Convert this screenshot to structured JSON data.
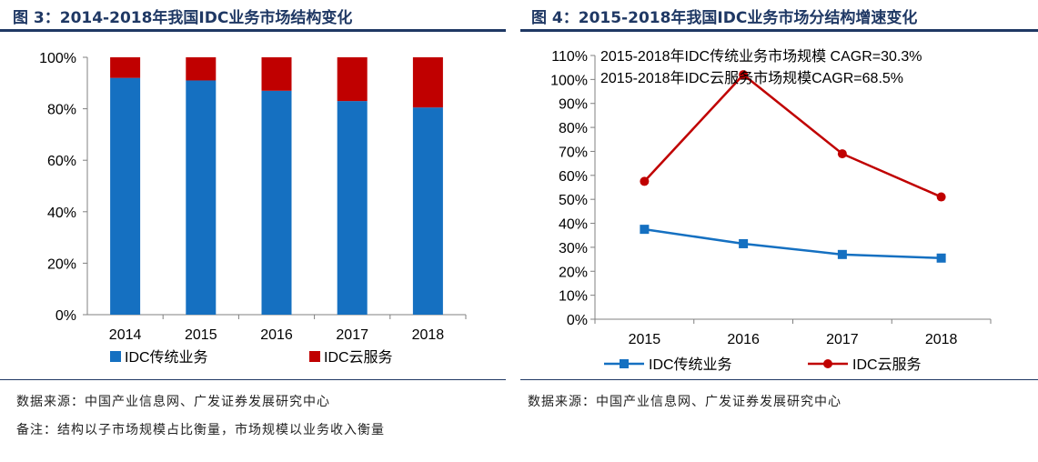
{
  "figures": [
    {
      "title": "图 3：2014-2018年我国IDC业务市场结构变化",
      "source": "数据来源：中国产业信息网、广发证券发展研究中心",
      "note": "备注：结构以子市场规模占比衡量，市场规模以业务收入衡量"
    },
    {
      "title": "图 4：2015-2018年我国IDC业务市场分结构增速变化",
      "source": "数据来源：中国产业信息网、广发证券发展研究中心"
    }
  ],
  "chart_data": [
    {
      "type": "bar",
      "stacked": true,
      "categories": [
        "2014",
        "2015",
        "2016",
        "2017",
        "2018"
      ],
      "series": [
        {
          "name": "IDC传统业务",
          "color": "#1570c1",
          "values": [
            92,
            91,
            87,
            83,
            80.5
          ]
        },
        {
          "name": "IDC云服务",
          "color": "#c00000",
          "values": [
            8,
            9,
            13,
            17,
            19.5
          ]
        }
      ],
      "ylim": [
        0,
        100
      ],
      "yticks": [
        "0%",
        "20%",
        "40%",
        "60%",
        "80%",
        "100%"
      ],
      "legend": "bottom"
    },
    {
      "type": "line",
      "categories": [
        "2015",
        "2016",
        "2017",
        "2018"
      ],
      "series": [
        {
          "name": "IDC传统业务",
          "color": "#1570c1",
          "marker": "square",
          "values": [
            37.5,
            31.5,
            27,
            25.5
          ]
        },
        {
          "name": "IDC云服务",
          "color": "#c00000",
          "marker": "circle",
          "values": [
            57.5,
            102,
            69,
            51
          ]
        }
      ],
      "ylim": [
        0,
        110
      ],
      "yticks": [
        "0%",
        "10%",
        "20%",
        "30%",
        "40%",
        "50%",
        "60%",
        "70%",
        "80%",
        "90%",
        "100%",
        "110%"
      ],
      "annotations": [
        "2015-2018年IDC传统业务市场规模 CAGR=30.3%",
        "2015-2018年IDC云服务市场规模CAGR=68.5%"
      ],
      "legend": "bottom"
    }
  ]
}
